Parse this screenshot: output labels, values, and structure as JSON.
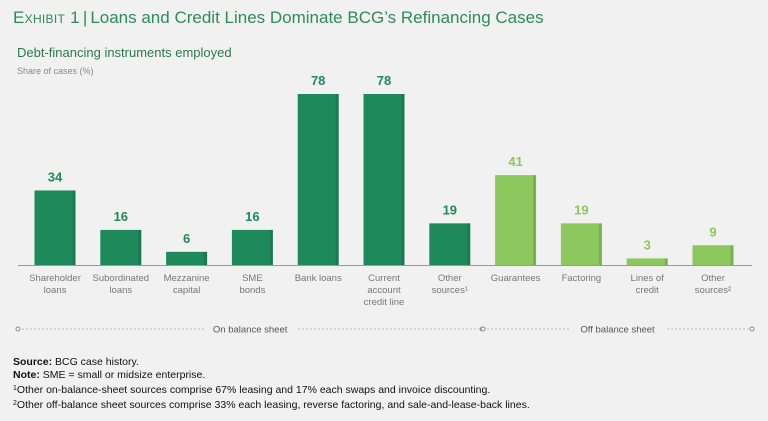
{
  "header": {
    "exhibit": "Exhibit 1",
    "title": "Loans and Credit Lines Dominate BCG’s Refinancing Cases"
  },
  "colors": {
    "on_balance": "#1e8a5c",
    "off_balance": "#8cc85e",
    "title_green": "#2e8b57"
  },
  "chart_data": {
    "type": "bar",
    "title": "Debt-financing instruments employed",
    "ylabel": "Share of cases (%)",
    "ylim": [
      0,
      78
    ],
    "grid": false,
    "categories": [
      [
        "Shareholder",
        "loans"
      ],
      [
        "Subordinated",
        "loans"
      ],
      [
        "Mezzanine",
        "capital"
      ],
      [
        "SME",
        "bonds"
      ],
      [
        "Bank loans"
      ],
      [
        "Current",
        "account",
        "credit line"
      ],
      [
        "Other",
        "sources¹"
      ],
      [
        "Guarantees"
      ],
      [
        "Factoring"
      ],
      [
        "Lines of",
        "credit"
      ],
      [
        "Other",
        "sources²"
      ]
    ],
    "values": [
      34,
      16,
      6,
      16,
      78,
      78,
      19,
      41,
      19,
      3,
      9
    ],
    "groups": [
      {
        "label": "On balance sheet",
        "color_key": "on_balance",
        "start": 0,
        "end": 6
      },
      {
        "label": "Off balance sheet",
        "color_key": "off_balance",
        "start": 7,
        "end": 10
      }
    ]
  },
  "notes": {
    "source_label": "Source:",
    "source_text": "BCG case history.",
    "note_label": "Note:",
    "note_text": "SME = small or midsize enterprise.",
    "footnote1_marker": "1",
    "footnote1": "Other on-balance-sheet sources comprise 67% leasing and 17% each swaps and invoice discounting.",
    "footnote2_marker": "2",
    "footnote2": "Other off-balance sheet sources comprise 33% each leasing, reverse factoring, and sale-and-lease-back lines."
  }
}
